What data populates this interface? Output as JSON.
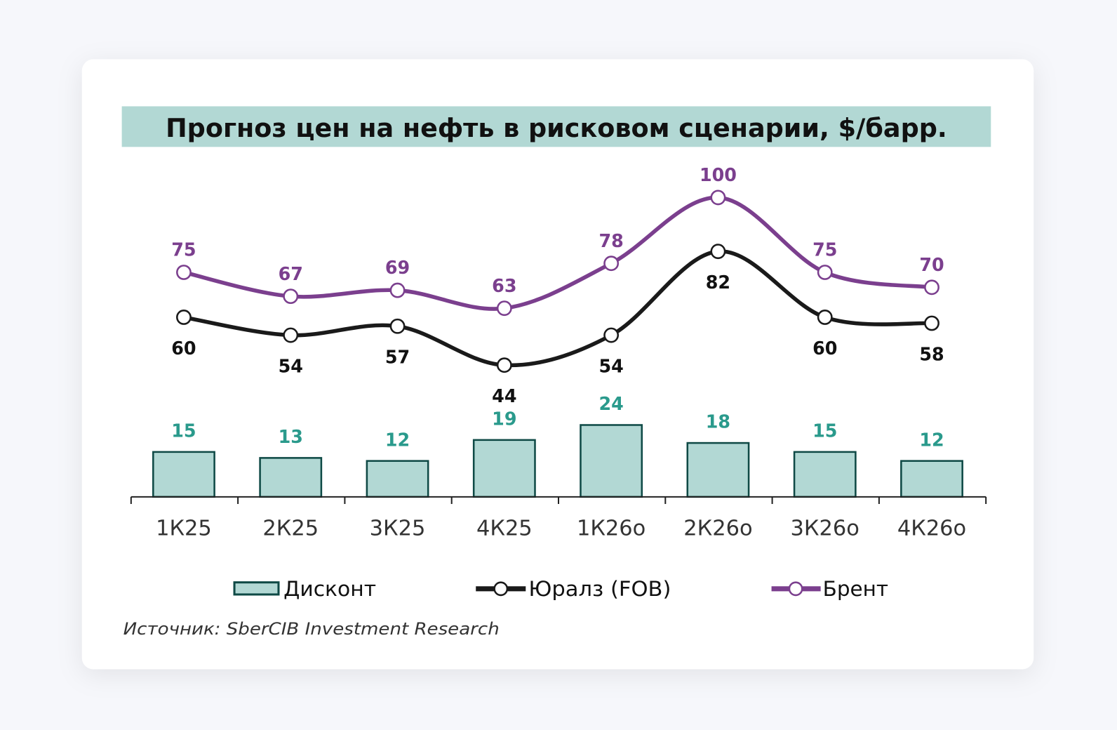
{
  "chart_data": {
    "type": "bar+line",
    "title": "Прогноз цен на нефть в рисковом сценарии, $/барр.",
    "categories": [
      "1К25",
      "2К25",
      "3К25",
      "4К25",
      "1К26о",
      "2К26о",
      "3К26о",
      "4К26о"
    ],
    "series": [
      {
        "name": "Дисконт",
        "type": "bar",
        "values": [
          15,
          13,
          12,
          19,
          24,
          18,
          15,
          12
        ],
        "color": "#b2d8d4",
        "stroke": "#0f4a46",
        "label_color": "#2a9a8c"
      },
      {
        "name": "Юралз (FOB)",
        "type": "line",
        "values": [
          60,
          54,
          57,
          44,
          54,
          82,
          60,
          58
        ],
        "color": "#1a1a1a",
        "label_color": "#111111"
      },
      {
        "name": "Брент",
        "type": "line",
        "values": [
          75,
          67,
          69,
          63,
          78,
          100,
          75,
          70
        ],
        "color": "#7b3f8e",
        "label_color": "#7b3f8e"
      }
    ],
    "ylim": [
      0,
      100
    ],
    "grid": false,
    "legend": "bottom",
    "source": "Источник: SberCIB Investment Research",
    "title_bg": "#b2d8d4"
  }
}
